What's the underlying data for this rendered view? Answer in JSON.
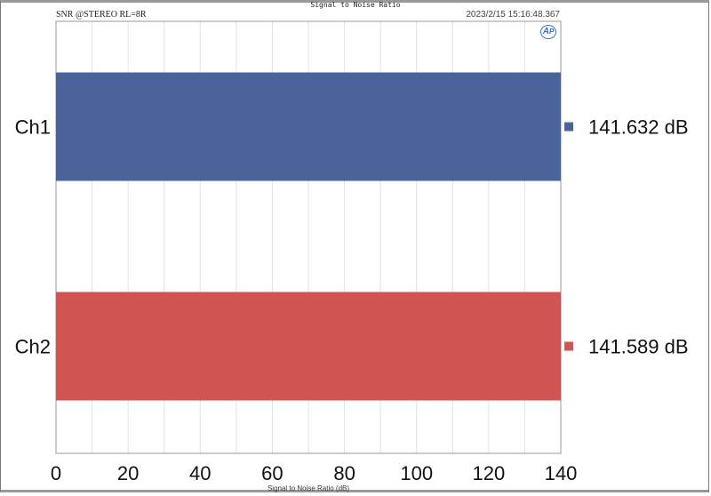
{
  "chart_data": {
    "type": "bar",
    "orientation": "horizontal",
    "title": "Signal to Noise Ratio",
    "subtitle": "SNR @STEREO RL=8R",
    "timestamp": "2023/2/15 15:16:48.367",
    "logo": "AP",
    "xlabel": "Signal to Noise Ratio (dB)",
    "xlim": [
      0,
      140
    ],
    "xticks": [
      "0",
      "20",
      "40",
      "60",
      "80",
      "100",
      "120",
      "140"
    ],
    "grid": true,
    "categories": [
      "Ch1",
      "Ch2"
    ],
    "values": [
      141.632,
      141.589
    ],
    "value_labels": [
      "141.632  dB",
      "141.589  dB"
    ],
    "colors": [
      "#4a6399",
      "#d05452"
    ],
    "legend": "right"
  }
}
